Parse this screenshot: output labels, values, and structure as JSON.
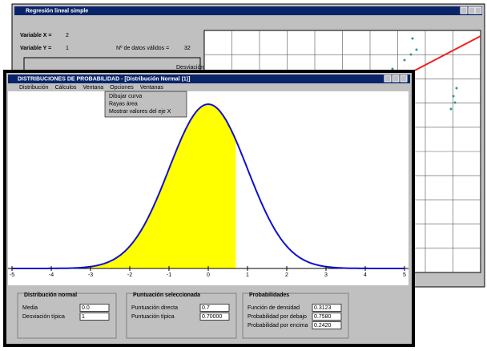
{
  "back_window": {
    "title": "Regresión lineal simple",
    "var_x_label": "Variable X =",
    "var_x_value": "2",
    "var_y_label": "Variable Y =",
    "var_y_value": "1",
    "n_label": "Nº de datos válidos =",
    "n_value": "32",
    "column_header": "Desviación"
  },
  "front_window": {
    "title": "DISTRIBUCIONES DE PROBABILIDAD - [Distribución Normal (1)]",
    "menu": [
      "Distribución",
      "Cálculos",
      "Ventana",
      "Opciones",
      "Ventanas"
    ],
    "dropdown": [
      "Dibujar curva",
      "Rayas área",
      "Mostrar valores del eje X"
    ],
    "plot": {
      "xlim": [
        -5,
        5
      ],
      "xticks": [
        -5,
        -4,
        -3,
        -2,
        -1,
        0,
        1,
        2,
        3,
        4,
        5
      ]
    },
    "panels": {
      "distribution": {
        "title": "Distribución normal",
        "mean_label": "Media",
        "mean_value": "0.0",
        "sd_label": "Desviación típica",
        "sd_value": "1"
      },
      "selected": {
        "title": "Puntuación seleccionada",
        "raw_label": "Puntuación directa",
        "raw_value": "0.7",
        "z_label": "Puntuación típica",
        "z_value": "0.70000"
      },
      "probabilities": {
        "title": "Probabilidades",
        "density_label": "Función de densidad",
        "density_value": "0.3123",
        "below_label": "Probabilidad por debajo",
        "below_value": "0.7580",
        "above_label": "Probabilidad por encima",
        "above_value": "0.2420"
      }
    }
  }
}
